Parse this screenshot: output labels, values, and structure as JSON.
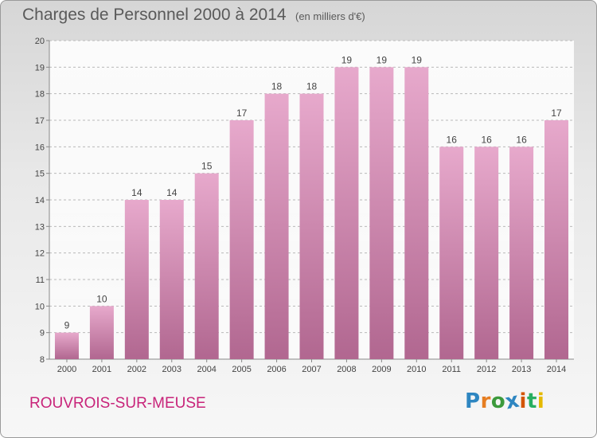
{
  "header": {
    "title": "Charges de Personnel 2000 à 2014",
    "subtitle": "(en milliers d'€)"
  },
  "footer": {
    "commune": "ROUVROIS-SUR-MEUSE",
    "logo_text": "Proxiti"
  },
  "colors": {
    "bar_top": "#e7a9cc",
    "bar_bottom": "#b16790",
    "grid": "#b9b9b9",
    "commune": "#c8247a",
    "logo_letters": [
      "#2e86c1",
      "#e67e22",
      "#3c9a3c",
      "#2e86c1",
      "#d35400",
      "#27ae60",
      "#e5b900"
    ]
  },
  "chart_data": {
    "type": "bar",
    "title": "Charges de Personnel 2000 à 2014",
    "subtitle": "(en milliers d'€)",
    "categories": [
      "2000",
      "2001",
      "2002",
      "2003",
      "2004",
      "2005",
      "2006",
      "2007",
      "2008",
      "2009",
      "2010",
      "2011",
      "2012",
      "2013",
      "2014"
    ],
    "values": [
      9,
      10,
      14,
      14,
      15,
      17,
      18,
      18,
      19,
      19,
      19,
      16,
      16,
      16,
      17
    ],
    "ylim": [
      8,
      20
    ],
    "yticks": [
      8,
      9,
      10,
      11,
      12,
      13,
      14,
      15,
      16,
      17,
      18,
      19,
      20
    ],
    "grid": true,
    "data_labels": true
  }
}
